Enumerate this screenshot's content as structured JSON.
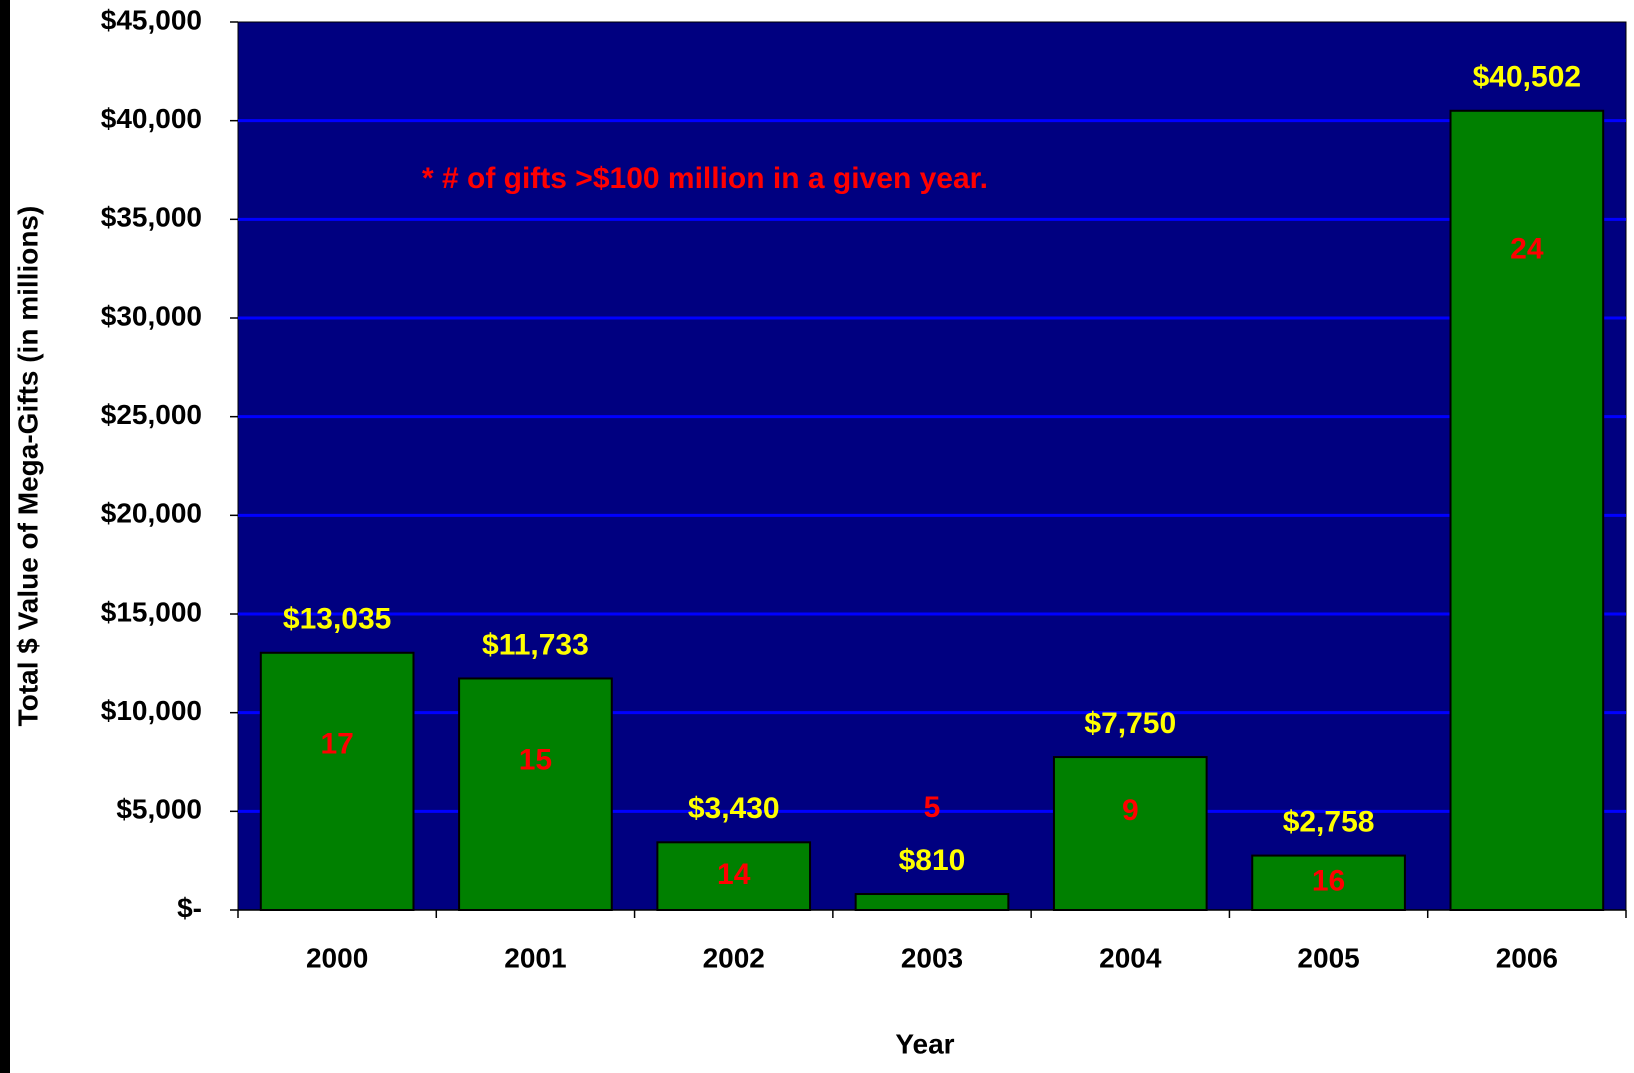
{
  "chart_data": {
    "type": "bar",
    "ylabel": "Total $ Value of Mega-Gifts (in millions)",
    "xlabel": "Year",
    "annotation": "* # of gifts >$100 million in a given  year.",
    "categories": [
      "2000",
      "2001",
      "2002",
      "2003",
      "2004",
      "2005",
      "2006"
    ],
    "values": [
      13035,
      11733,
      3430,
      810,
      7750,
      2758,
      40502
    ],
    "value_labels": [
      "$13,035",
      "$11,733",
      "$3,430",
      "$810",
      "$7,750",
      "$2,758",
      "$40,502"
    ],
    "counts": [
      17,
      15,
      14,
      5,
      9,
      16,
      24
    ],
    "color": "#008000",
    "ylim": [
      0,
      45000
    ],
    "yticks": [
      {
        "value": 0,
        "label": "$-"
      },
      {
        "value": 5000,
        "label": "$5,000"
      },
      {
        "value": 10000,
        "label": "$10,000"
      },
      {
        "value": 15000,
        "label": "$15,000"
      },
      {
        "value": 20000,
        "label": "$20,000"
      },
      {
        "value": 25000,
        "label": "$25,000"
      },
      {
        "value": 30000,
        "label": "$30,000"
      },
      {
        "value": 35000,
        "label": "$35,000"
      },
      {
        "value": 40000,
        "label": "$40,000"
      },
      {
        "value": 45000,
        "label": "$45,000"
      }
    ],
    "grid": true
  }
}
